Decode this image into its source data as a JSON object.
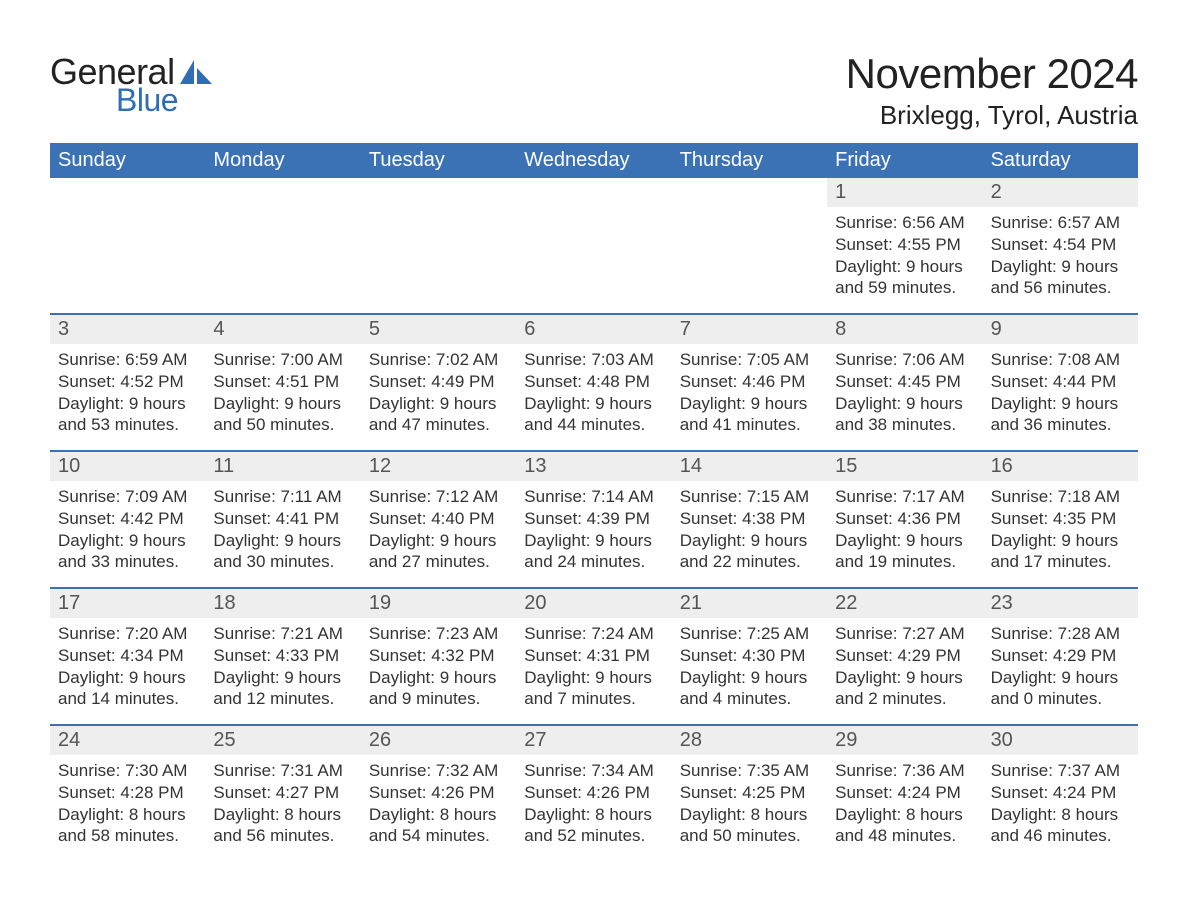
{
  "brand": {
    "general": "General",
    "blue": "Blue",
    "sail_color": "#2f6eb5"
  },
  "title": "November 2024",
  "location": "Brixlegg, Tyrol, Austria",
  "colors": {
    "header_bg": "#3a72b5",
    "header_fg": "#ffffff",
    "band_bg": "#eeeeee",
    "week_border": "#3a72b5",
    "text": "#333333"
  },
  "weekdays": [
    "Sunday",
    "Monday",
    "Tuesday",
    "Wednesday",
    "Thursday",
    "Friday",
    "Saturday"
  ],
  "weeks": [
    {
      "partial": true,
      "days": [
        null,
        null,
        null,
        null,
        null,
        {
          "n": "1",
          "sunrise": "Sunrise: 6:56 AM",
          "sunset": "Sunset: 4:55 PM",
          "dl1": "Daylight: 9 hours",
          "dl2": "and 59 minutes."
        },
        {
          "n": "2",
          "sunrise": "Sunrise: 6:57 AM",
          "sunset": "Sunset: 4:54 PM",
          "dl1": "Daylight: 9 hours",
          "dl2": "and 56 minutes."
        }
      ]
    },
    {
      "days": [
        {
          "n": "3",
          "sunrise": "Sunrise: 6:59 AM",
          "sunset": "Sunset: 4:52 PM",
          "dl1": "Daylight: 9 hours",
          "dl2": "and 53 minutes."
        },
        {
          "n": "4",
          "sunrise": "Sunrise: 7:00 AM",
          "sunset": "Sunset: 4:51 PM",
          "dl1": "Daylight: 9 hours",
          "dl2": "and 50 minutes."
        },
        {
          "n": "5",
          "sunrise": "Sunrise: 7:02 AM",
          "sunset": "Sunset: 4:49 PM",
          "dl1": "Daylight: 9 hours",
          "dl2": "and 47 minutes."
        },
        {
          "n": "6",
          "sunrise": "Sunrise: 7:03 AM",
          "sunset": "Sunset: 4:48 PM",
          "dl1": "Daylight: 9 hours",
          "dl2": "and 44 minutes."
        },
        {
          "n": "7",
          "sunrise": "Sunrise: 7:05 AM",
          "sunset": "Sunset: 4:46 PM",
          "dl1": "Daylight: 9 hours",
          "dl2": "and 41 minutes."
        },
        {
          "n": "8",
          "sunrise": "Sunrise: 7:06 AM",
          "sunset": "Sunset: 4:45 PM",
          "dl1": "Daylight: 9 hours",
          "dl2": "and 38 minutes."
        },
        {
          "n": "9",
          "sunrise": "Sunrise: 7:08 AM",
          "sunset": "Sunset: 4:44 PM",
          "dl1": "Daylight: 9 hours",
          "dl2": "and 36 minutes."
        }
      ]
    },
    {
      "days": [
        {
          "n": "10",
          "sunrise": "Sunrise: 7:09 AM",
          "sunset": "Sunset: 4:42 PM",
          "dl1": "Daylight: 9 hours",
          "dl2": "and 33 minutes."
        },
        {
          "n": "11",
          "sunrise": "Sunrise: 7:11 AM",
          "sunset": "Sunset: 4:41 PM",
          "dl1": "Daylight: 9 hours",
          "dl2": "and 30 minutes."
        },
        {
          "n": "12",
          "sunrise": "Sunrise: 7:12 AM",
          "sunset": "Sunset: 4:40 PM",
          "dl1": "Daylight: 9 hours",
          "dl2": "and 27 minutes."
        },
        {
          "n": "13",
          "sunrise": "Sunrise: 7:14 AM",
          "sunset": "Sunset: 4:39 PM",
          "dl1": "Daylight: 9 hours",
          "dl2": "and 24 minutes."
        },
        {
          "n": "14",
          "sunrise": "Sunrise: 7:15 AM",
          "sunset": "Sunset: 4:38 PM",
          "dl1": "Daylight: 9 hours",
          "dl2": "and 22 minutes."
        },
        {
          "n": "15",
          "sunrise": "Sunrise: 7:17 AM",
          "sunset": "Sunset: 4:36 PM",
          "dl1": "Daylight: 9 hours",
          "dl2": "and 19 minutes."
        },
        {
          "n": "16",
          "sunrise": "Sunrise: 7:18 AM",
          "sunset": "Sunset: 4:35 PM",
          "dl1": "Daylight: 9 hours",
          "dl2": "and 17 minutes."
        }
      ]
    },
    {
      "days": [
        {
          "n": "17",
          "sunrise": "Sunrise: 7:20 AM",
          "sunset": "Sunset: 4:34 PM",
          "dl1": "Daylight: 9 hours",
          "dl2": "and 14 minutes."
        },
        {
          "n": "18",
          "sunrise": "Sunrise: 7:21 AM",
          "sunset": "Sunset: 4:33 PM",
          "dl1": "Daylight: 9 hours",
          "dl2": "and 12 minutes."
        },
        {
          "n": "19",
          "sunrise": "Sunrise: 7:23 AM",
          "sunset": "Sunset: 4:32 PM",
          "dl1": "Daylight: 9 hours",
          "dl2": "and 9 minutes."
        },
        {
          "n": "20",
          "sunrise": "Sunrise: 7:24 AM",
          "sunset": "Sunset: 4:31 PM",
          "dl1": "Daylight: 9 hours",
          "dl2": "and 7 minutes."
        },
        {
          "n": "21",
          "sunrise": "Sunrise: 7:25 AM",
          "sunset": "Sunset: 4:30 PM",
          "dl1": "Daylight: 9 hours",
          "dl2": "and 4 minutes."
        },
        {
          "n": "22",
          "sunrise": "Sunrise: 7:27 AM",
          "sunset": "Sunset: 4:29 PM",
          "dl1": "Daylight: 9 hours",
          "dl2": "and 2 minutes."
        },
        {
          "n": "23",
          "sunrise": "Sunrise: 7:28 AM",
          "sunset": "Sunset: 4:29 PM",
          "dl1": "Daylight: 9 hours",
          "dl2": "and 0 minutes."
        }
      ]
    },
    {
      "days": [
        {
          "n": "24",
          "sunrise": "Sunrise: 7:30 AM",
          "sunset": "Sunset: 4:28 PM",
          "dl1": "Daylight: 8 hours",
          "dl2": "and 58 minutes."
        },
        {
          "n": "25",
          "sunrise": "Sunrise: 7:31 AM",
          "sunset": "Sunset: 4:27 PM",
          "dl1": "Daylight: 8 hours",
          "dl2": "and 56 minutes."
        },
        {
          "n": "26",
          "sunrise": "Sunrise: 7:32 AM",
          "sunset": "Sunset: 4:26 PM",
          "dl1": "Daylight: 8 hours",
          "dl2": "and 54 minutes."
        },
        {
          "n": "27",
          "sunrise": "Sunrise: 7:34 AM",
          "sunset": "Sunset: 4:26 PM",
          "dl1": "Daylight: 8 hours",
          "dl2": "and 52 minutes."
        },
        {
          "n": "28",
          "sunrise": "Sunrise: 7:35 AM",
          "sunset": "Sunset: 4:25 PM",
          "dl1": "Daylight: 8 hours",
          "dl2": "and 50 minutes."
        },
        {
          "n": "29",
          "sunrise": "Sunrise: 7:36 AM",
          "sunset": "Sunset: 4:24 PM",
          "dl1": "Daylight: 8 hours",
          "dl2": "and 48 minutes."
        },
        {
          "n": "30",
          "sunrise": "Sunrise: 7:37 AM",
          "sunset": "Sunset: 4:24 PM",
          "dl1": "Daylight: 8 hours",
          "dl2": "and 46 minutes."
        }
      ]
    }
  ]
}
